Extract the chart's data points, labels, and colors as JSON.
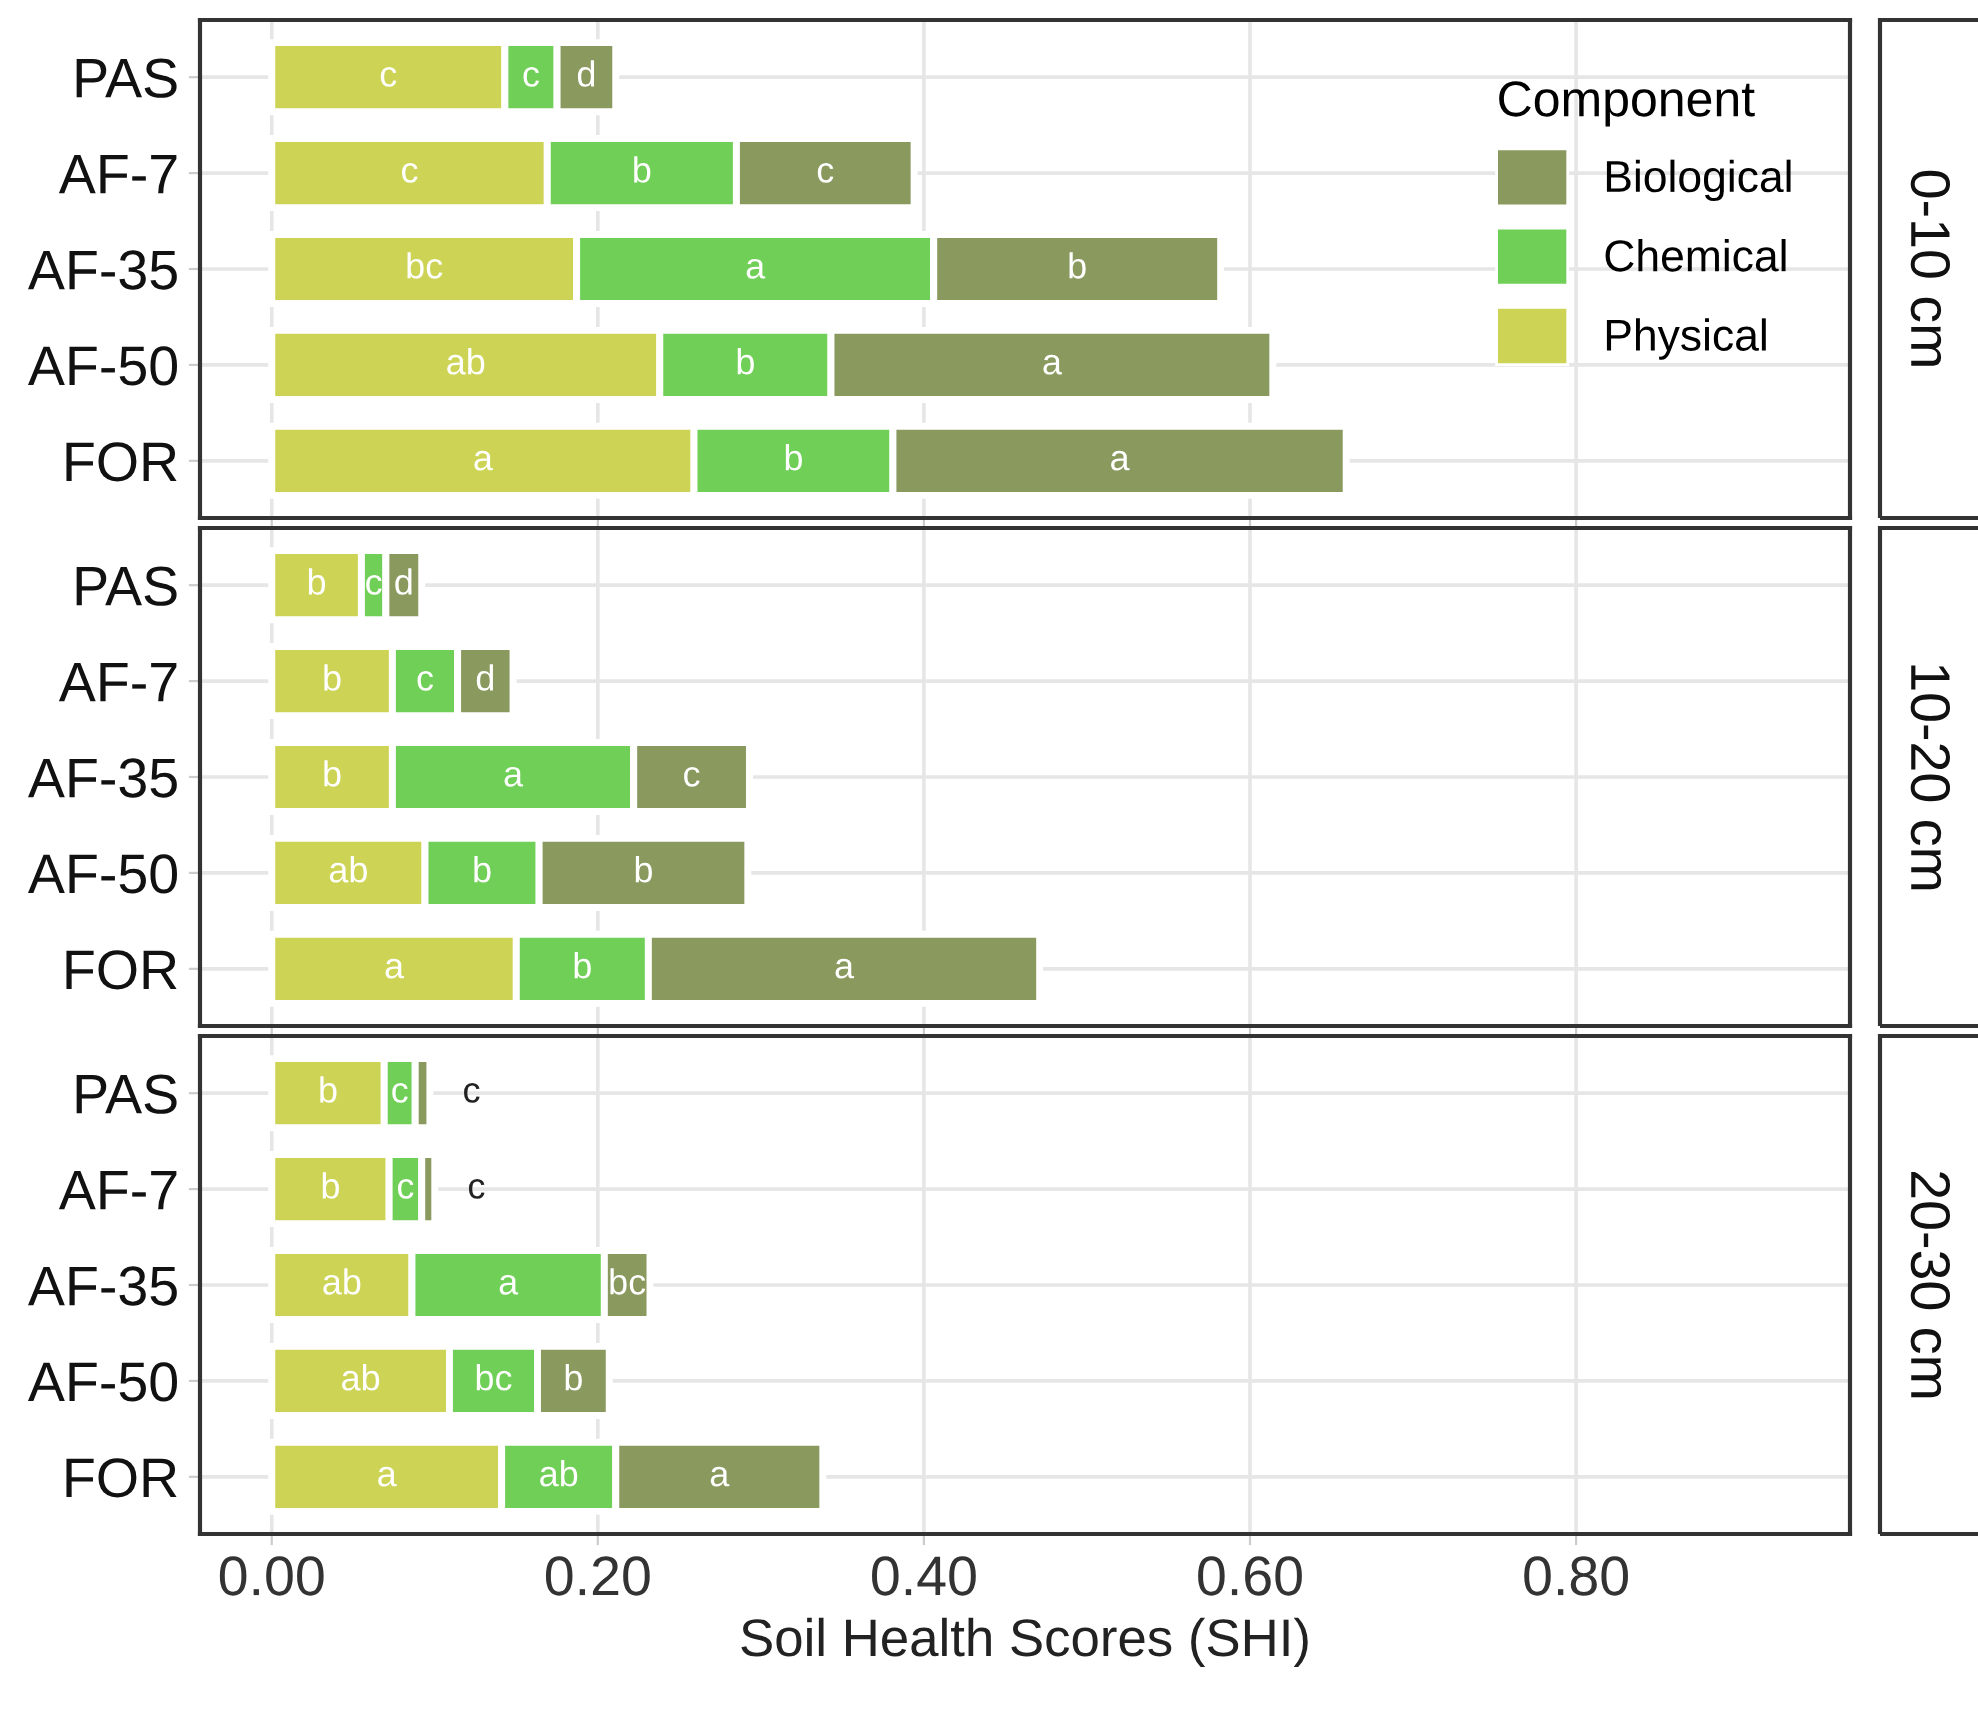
{
  "chart_data": [
    {
      "type": "bar",
      "ylabel": "0-10 cm",
      "orientation": "horizontal",
      "stacked": true,
      "categories": [
        "PAS",
        "AF-7",
        "AF-35",
        "AF-50",
        "FOR"
      ],
      "legend": "top right",
      "legend_title": "Component",
      "grid": true,
      "tick_labels": "y",
      "xlim": [
        -0.044,
        0.968
      ],
      "xticks": [
        0,
        0.2,
        0.4,
        0.6,
        0.8
      ],
      "series": [
        {
          "name": "Physical",
          "color": "#cdd455",
          "values": [
            0.143,
            0.169,
            0.187,
            0.238,
            0.259
          ],
          "value_labels": [
            "c",
            "c",
            "bc",
            "ab",
            "a"
          ]
        },
        {
          "name": "Chemical",
          "color": "#6fcf57",
          "values": [
            0.032,
            0.116,
            0.219,
            0.105,
            0.122
          ],
          "value_labels": [
            "c",
            "b",
            "a",
            "b",
            "b"
          ]
        },
        {
          "name": "Biological",
          "color": "#8a9a5f",
          "values": [
            0.036,
            0.109,
            0.176,
            0.271,
            0.278
          ],
          "value_labels": [
            "d",
            "c",
            "b",
            "a",
            "a"
          ]
        }
      ]
    },
    {
      "type": "bar",
      "ylabel": "10-20 cm",
      "orientation": "horizontal",
      "stacked": true,
      "categories": [
        "PAS",
        "AF-7",
        "AF-35",
        "AF-50",
        "FOR"
      ],
      "grid": true,
      "tick_labels": "y",
      "xlim": [
        -0.044,
        0.968
      ],
      "xticks": [
        0,
        0.2,
        0.4,
        0.6,
        0.8
      ],
      "series": [
        {
          "color": "#cdd455",
          "values": [
            0.055,
            0.074,
            0.074,
            0.094,
            0.15
          ],
          "value_labels": [
            "b",
            "b",
            "b",
            "ab",
            "a"
          ]
        },
        {
          "color": "#6fcf57",
          "values": [
            0.015,
            0.04,
            0.148,
            0.07,
            0.081
          ],
          "value_labels": [
            "c",
            "c",
            "a",
            "b",
            "b"
          ]
        },
        {
          "color": "#8a9a5f",
          "values": [
            0.022,
            0.034,
            0.071,
            0.128,
            0.24
          ],
          "value_labels": [
            "d",
            "d",
            "c",
            "b",
            "a"
          ]
        }
      ]
    },
    {
      "type": "bar",
      "ylabel": "20-30 cm",
      "xlabel": "Soil Health Scores (SHI)",
      "orientation": "horizontal",
      "stacked": true,
      "categories": [
        "PAS",
        "AF-7",
        "AF-35",
        "AF-50",
        "FOR"
      ],
      "grid": true,
      "xlim": [
        -0.044,
        0.968
      ],
      "xticks": [
        {
          "value": 0,
          "label": "0.00"
        },
        {
          "value": 0.2,
          "label": "0.20"
        },
        {
          "value": 0.4,
          "label": "0.40"
        },
        {
          "value": 0.6,
          "label": "0.60"
        },
        {
          "value": 0.8,
          "label": "0.80"
        }
      ],
      "series": [
        {
          "color": "#cdd455",
          "values": [
            0.069,
            0.072,
            0.086,
            0.109,
            0.141
          ],
          "value_labels": [
            "b",
            "b",
            "ab",
            "ab",
            "a"
          ]
        },
        {
          "color": "#6fcf57",
          "values": [
            0.019,
            0.02,
            0.118,
            0.054,
            0.07
          ],
          "value_labels": [
            "c",
            "c",
            "a",
            "bc",
            "ab"
          ]
        },
        {
          "color": "#8a9a5f",
          "values": [
            0.009,
            0.008,
            0.028,
            0.044,
            0.127
          ],
          "value_labels": [
            "c",
            "c",
            "bc",
            "b",
            "a"
          ]
        }
      ]
    }
  ]
}
